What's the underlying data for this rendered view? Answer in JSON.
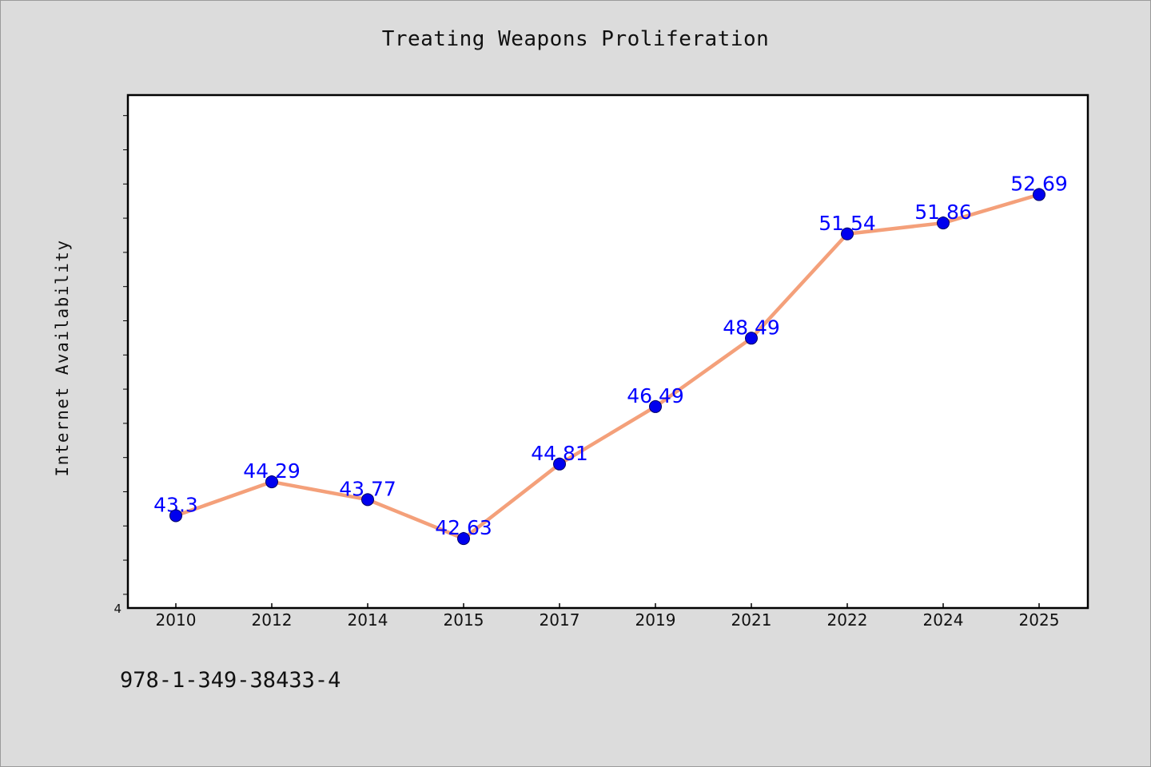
{
  "chart_data": {
    "type": "line",
    "title": "Treating Weapons Proliferation",
    "xlabel": "",
    "ylabel": "Internet Availability",
    "categories": [
      "2010",
      "2012",
      "2014",
      "2015",
      "2017",
      "2019",
      "2021",
      "2022",
      "2024",
      "2025"
    ],
    "series": [
      {
        "values": [
          43.3,
          44.29,
          43.77,
          42.63,
          44.81,
          46.49,
          48.49,
          51.54,
          51.86,
          52.69
        ],
        "labels": [
          "43.3",
          "44.29",
          "43.77",
          "42.63",
          "44.81",
          "46.49",
          "48.49",
          "51.54",
          "51.86",
          "52.69"
        ]
      }
    ],
    "y_tick_labels": [
      "4"
    ],
    "ylim": [
      40.6,
      55.6
    ],
    "grid": false,
    "line_color": "#f4a07a",
    "marker_color": "#0000ee",
    "label_color": "#0000ff"
  },
  "footer": {
    "code": "978-1-349-38433-4"
  }
}
